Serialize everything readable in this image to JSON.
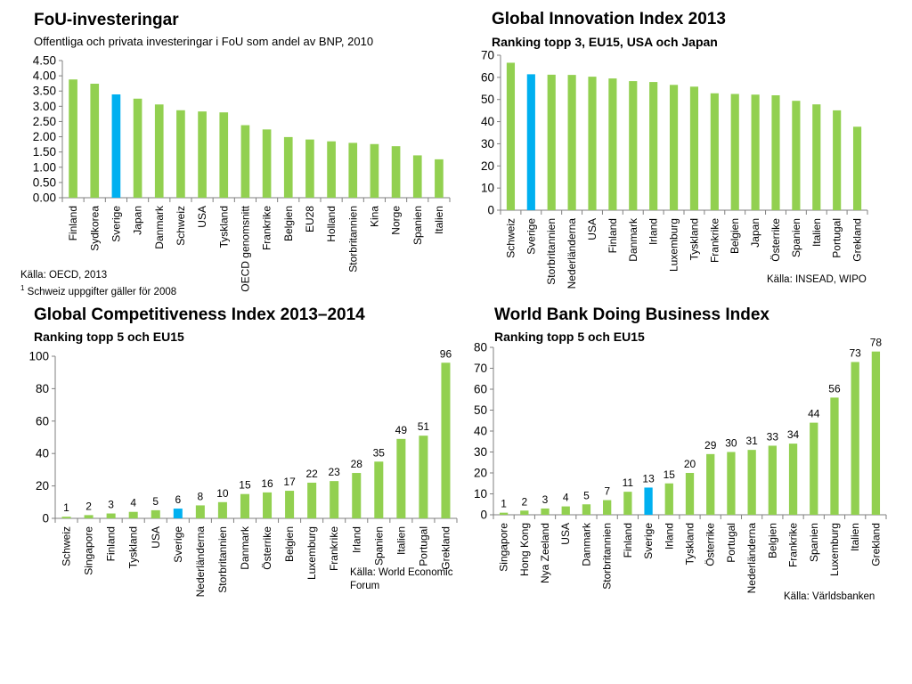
{
  "colors": {
    "bar": "#92d050",
    "highlight": "#00b0f0",
    "axis": "#7f7f7f"
  },
  "chart_data": [
    {
      "id": "rd",
      "type": "bar",
      "title": "FoU-investeringar",
      "subtitle": "Offentliga och privata investeringar i FoU som andel av BNP, 2010",
      "categories": [
        "Finland",
        "Sydkorea",
        "Sverige",
        "Japan",
        "Danmark",
        "Schweiz",
        "USA",
        "Tyskland",
        "OECD genomsnitt",
        "Frankrike",
        "Belgien",
        "EU28",
        "Holland",
        "Storbritannien",
        "Kina",
        "Norge",
        "Spanien",
        "Italien"
      ],
      "values": [
        3.88,
        3.74,
        3.39,
        3.25,
        3.06,
        2.87,
        2.83,
        2.8,
        2.38,
        2.24,
        1.99,
        1.91,
        1.85,
        1.8,
        1.76,
        1.69,
        1.39,
        1.26
      ],
      "highlight": "Sverige",
      "ylim": [
        0,
        4.5
      ],
      "yticks": [
        "0.00",
        "0.50",
        "1.00",
        "1.50",
        "2.00",
        "2.50",
        "3.00",
        "3.50",
        "4.00",
        "4.50"
      ],
      "ytick_step": 0.5,
      "data_labels": false,
      "grid": false,
      "source_lines": [
        "Källa: OECD, 2013"
      ],
      "footnote_sup": "1",
      "footnote": " Schweiz uppgifter gäller för 2008"
    },
    {
      "id": "gii",
      "type": "bar",
      "title": "Global Innovation Index 2013",
      "subtitle": "Ranking topp 3, EU15, USA och Japan",
      "categories": [
        "Schweiz",
        "Sverige",
        "Storbritannien",
        "Nederländerna",
        "USA",
        "Finland",
        "Danmark",
        "Irland",
        "Luxemburg",
        "Tyskland",
        "Frankrike",
        "Belgien",
        "Japan",
        "Österrike",
        "Spanien",
        "Italien",
        "Portugal",
        "Grekland"
      ],
      "values": [
        66.6,
        61.4,
        61.2,
        61.1,
        60.3,
        59.5,
        58.3,
        57.9,
        56.6,
        55.8,
        52.8,
        52.5,
        52.2,
        51.9,
        49.4,
        47.8,
        45.1,
        37.7
      ],
      "highlight": "Sverige",
      "ylim": [
        0,
        70
      ],
      "yticks": [
        "0",
        "10",
        "20",
        "30",
        "40",
        "50",
        "60",
        "70"
      ],
      "ytick_step": 10,
      "data_labels": false,
      "grid": false,
      "source_lines": [
        "Källa: INSEAD, WIPO"
      ]
    },
    {
      "id": "gci",
      "type": "bar",
      "title": "Global Competitiveness Index 2013–2014",
      "subtitle": "Ranking topp 5 och EU15",
      "categories": [
        "Schweiz",
        "Singapore",
        "Finland",
        "Tyskland",
        "USA",
        "Sverige",
        "Nederländerna",
        "Storbritannien",
        "Danmark",
        "Österrike",
        "Belgien",
        "Luxemburg",
        "Frankrike",
        "Irland",
        "Spanien",
        "Italien",
        "Portugal",
        "Grekland"
      ],
      "values": [
        1,
        2,
        3,
        4,
        5,
        6,
        8,
        10,
        15,
        16,
        17,
        22,
        23,
        28,
        35,
        49,
        51,
        96
      ],
      "highlight": "Sverige",
      "ylim": [
        0,
        100
      ],
      "yticks": [
        "0",
        "20",
        "40",
        "60",
        "80",
        "100"
      ],
      "ytick_step": 20,
      "data_labels": true,
      "grid": false,
      "source_lines": [
        "Källa: World Economic",
        "Forum"
      ]
    },
    {
      "id": "wb",
      "type": "bar",
      "title": "World Bank Doing Business Index",
      "subtitle": "Ranking topp 5 och EU15",
      "categories": [
        "Singapore",
        "Hong Kong",
        "Nya Zeeland",
        "USA",
        "Danmark",
        "Storbritannien",
        "Finland",
        "Sverige",
        "Irland",
        "Tyskland",
        "Österrike",
        "Portugal",
        "Nederländerna",
        "Belgien",
        "Frankrike",
        "Spanien",
        "Luxemburg",
        "Italien",
        "Grekland"
      ],
      "values": [
        1,
        2,
        3,
        4,
        5,
        7,
        11,
        13,
        15,
        20,
        29,
        30,
        31,
        33,
        34,
        44,
        56,
        73,
        78
      ],
      "highlight": "Sverige",
      "ylim": [
        0,
        80
      ],
      "yticks": [
        "0",
        "10",
        "20",
        "30",
        "40",
        "50",
        "60",
        "70",
        "80"
      ],
      "ytick_step": 10,
      "data_labels": true,
      "grid": false,
      "source_lines": [
        "Källa: Världsbanken"
      ]
    }
  ]
}
